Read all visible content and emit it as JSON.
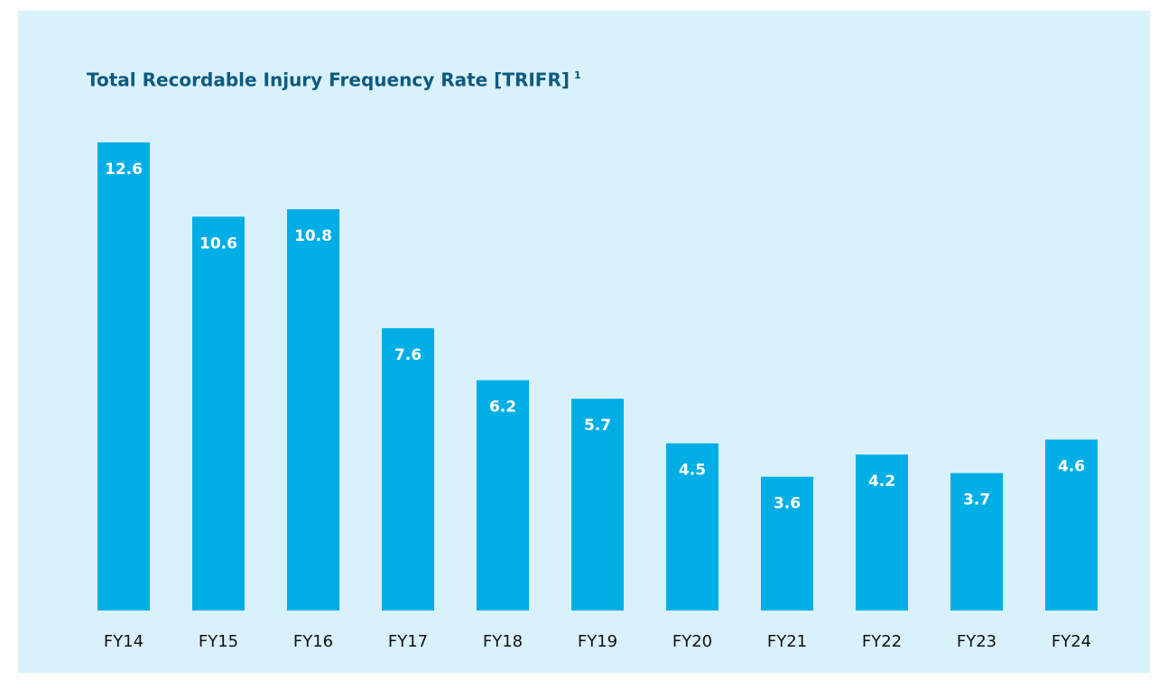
{
  "chart_data": {
    "type": "bar",
    "title": "Total Recordable Injury Frequency Rate [TRIFR]",
    "title_superscript": "1",
    "categories": [
      "FY14",
      "FY15",
      "FY16",
      "FY17",
      "FY18",
      "FY19",
      "FY20",
      "FY21",
      "FY22",
      "FY23",
      "FY24"
    ],
    "values": [
      12.6,
      10.6,
      10.8,
      7.6,
      6.2,
      5.7,
      4.5,
      3.6,
      4.2,
      3.7,
      4.6
    ],
    "color": "#00aee6",
    "ylim": [
      0,
      13
    ],
    "grid": false
  }
}
